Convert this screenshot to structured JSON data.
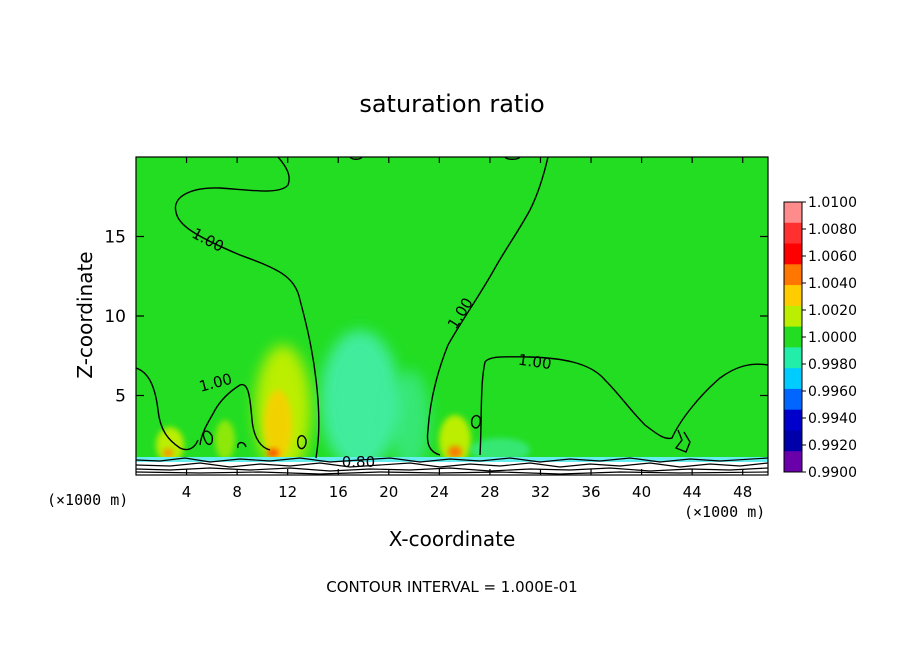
{
  "chart_data": {
    "type": "heatmap",
    "title": "saturation ratio",
    "xlabel": "X-coordinate",
    "ylabel": "Z-coordinate",
    "x_unit_left": "(×1000 m)",
    "x_unit_right": "(×1000 m)",
    "footer": "CONTOUR INTERVAL = 1.000E-01",
    "xlim": [
      0,
      50
    ],
    "ylim": [
      0,
      20
    ],
    "x_ticks": [
      "4",
      "8",
      "12",
      "16",
      "20",
      "24",
      "28",
      "32",
      "36",
      "40",
      "44",
      "48"
    ],
    "y_ticks": [
      "5",
      "10",
      "15"
    ],
    "colorbar": {
      "levels": [
        "1.0100",
        "1.0080",
        "1.0060",
        "1.0040",
        "1.0020",
        "1.0000",
        "0.9980",
        "0.9960",
        "0.9940",
        "0.9920",
        "0.9900"
      ],
      "colors": [
        "#ff8c8c",
        "#ff3030",
        "#ff0000",
        "#ff7700",
        "#ffcc00",
        "#bbee00",
        "#22dd22",
        "#22eeaa",
        "#00ccff",
        "#0066ff",
        "#0000cc",
        "#0000aa",
        "#6a00aa"
      ]
    },
    "contour_labels": [
      {
        "text": "1.00",
        "x": 5.5,
        "y": 14.5
      },
      {
        "text": "1.00",
        "x": 6.4,
        "y": 5.5
      },
      {
        "text": "1.00",
        "x": 26.0,
        "y": 10.0
      },
      {
        "text": "1.00",
        "x": 31.5,
        "y": 6.8
      },
      {
        "text": "0.80",
        "x": 17.6,
        "y": 0.5
      }
    ]
  }
}
